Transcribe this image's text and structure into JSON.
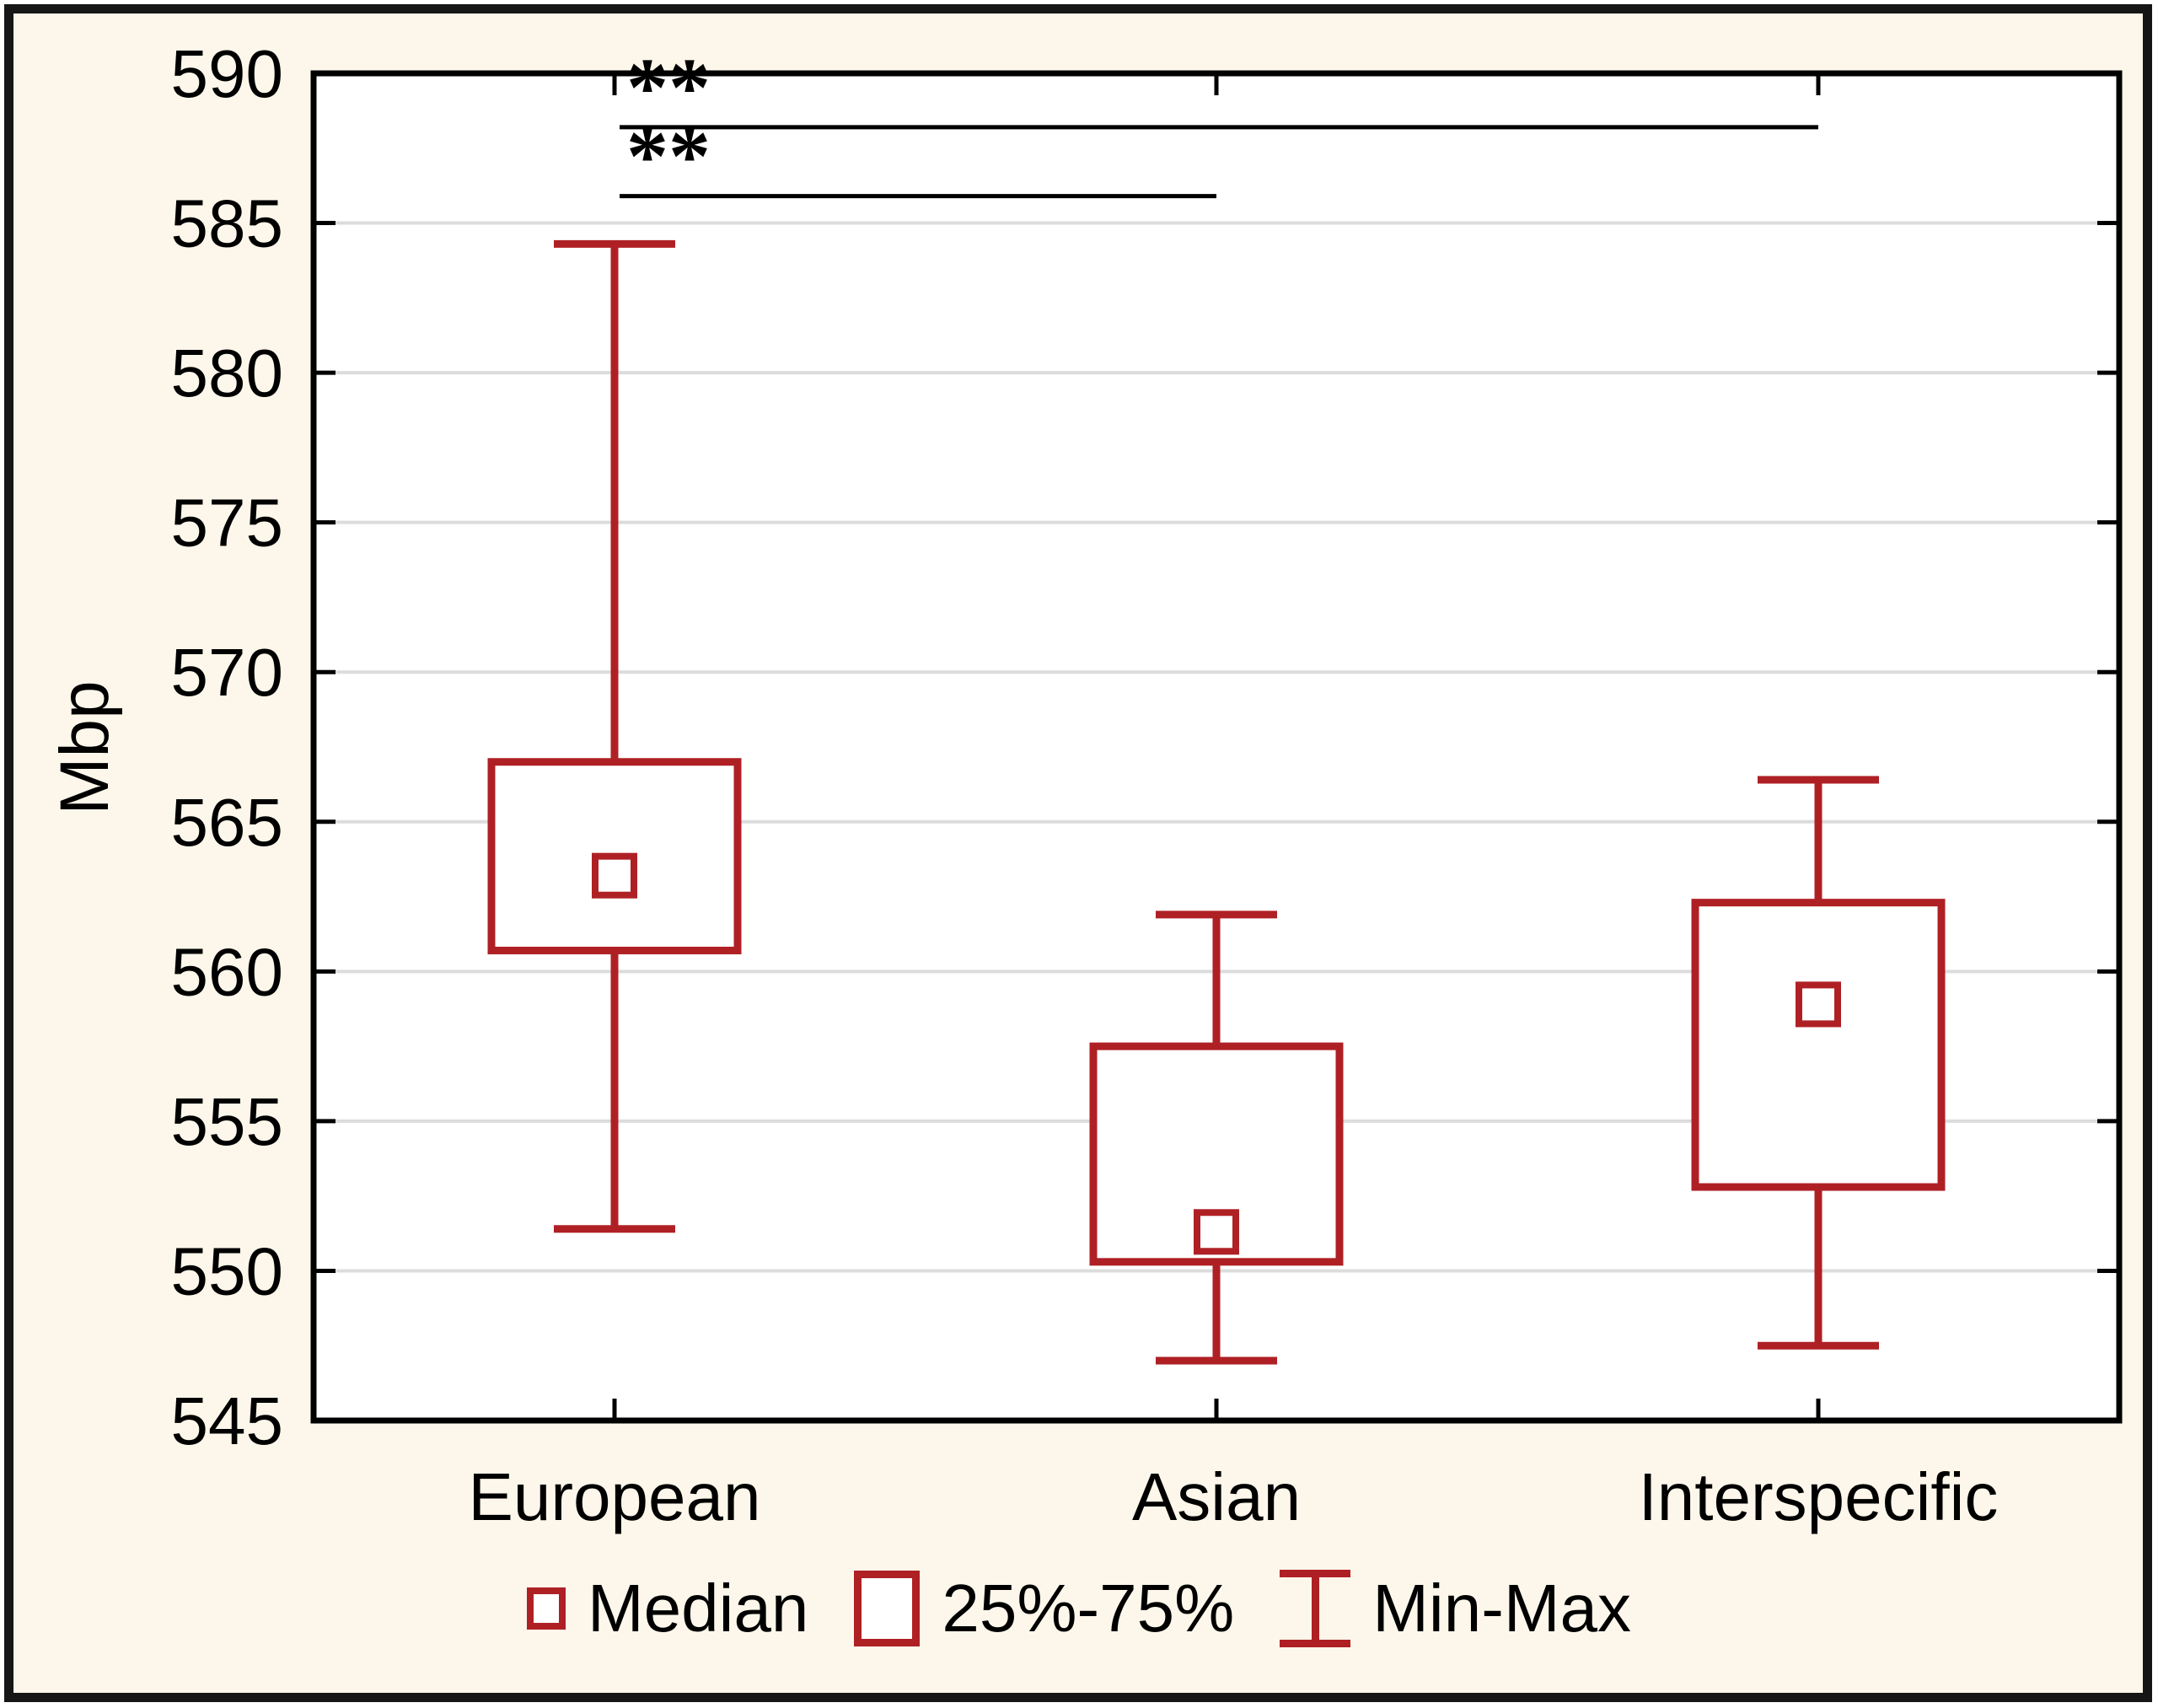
{
  "figure": {
    "background": "#FCF7EA",
    "plot_background": "#FFFFFF",
    "accent_red": "#AF2025",
    "gridline_color": "#DCDCDC",
    "frame_color": "#000000"
  },
  "chart_data": {
    "type": "boxplot",
    "title": "",
    "xlabel": "",
    "ylabel": "Mbp",
    "ylim": [
      545,
      590
    ],
    "yticks": [
      545,
      550,
      555,
      560,
      565,
      570,
      575,
      580,
      585,
      590
    ],
    "grid": "horizontal gridlines every 5 Mbp, light gray",
    "categories": [
      "European",
      "Asian",
      "Interspecific"
    ],
    "series": [
      {
        "category": "European",
        "min": 551.4,
        "q1": 560.7,
        "median": 563.2,
        "q3": 567.0,
        "max": 584.3
      },
      {
        "category": "Asian",
        "min": 547.0,
        "q1": 550.3,
        "median": 551.3,
        "q3": 557.5,
        "max": 561.9
      },
      {
        "category": "Interspecific",
        "min": 547.5,
        "q1": 552.8,
        "median": 558.9,
        "q3": 562.3,
        "max": 566.4
      }
    ],
    "annotations": [
      {
        "label": "**",
        "between": [
          "European",
          "Interspecific"
        ],
        "y": 588.2
      },
      {
        "label": "**",
        "between": [
          "European",
          "Asian"
        ],
        "y": 585.9
      }
    ],
    "legend": [
      {
        "symbol": "median-square",
        "label": "Median"
      },
      {
        "symbol": "iqr-box",
        "label": "25%-75%"
      },
      {
        "symbol": "min-max-whisker",
        "label": "Min-Max"
      }
    ],
    "legend_position": "bottom center"
  }
}
